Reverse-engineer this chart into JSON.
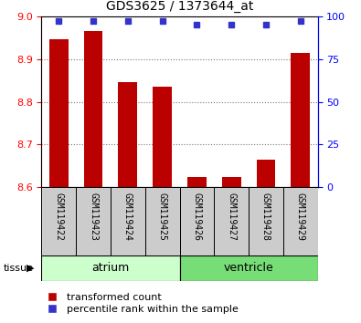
{
  "title": "GDS3625 / 1373644_at",
  "samples": [
    "GSM119422",
    "GSM119423",
    "GSM119424",
    "GSM119425",
    "GSM119426",
    "GSM119427",
    "GSM119428",
    "GSM119429"
  ],
  "bar_values": [
    8.945,
    8.965,
    8.845,
    8.835,
    8.625,
    8.625,
    8.665,
    8.915
  ],
  "dot_values": [
    97,
    97,
    97,
    97,
    95,
    95,
    95,
    97
  ],
  "bar_color": "#bb0000",
  "dot_color": "#3333cc",
  "ylim_left": [
    8.6,
    9.0
  ],
  "ylim_right": [
    0,
    100
  ],
  "yticks_left": [
    8.6,
    8.7,
    8.8,
    8.9,
    9.0
  ],
  "yticks_right": [
    0,
    25,
    50,
    75,
    100
  ],
  "groups": [
    {
      "label": "atrium",
      "samples": [
        0,
        1,
        2,
        3
      ],
      "color": "#ccffcc",
      "dark_color": "#77dd77"
    },
    {
      "label": "ventricle",
      "samples": [
        4,
        5,
        6,
        7
      ],
      "color": "#77dd77",
      "dark_color": "#44bb44"
    }
  ],
  "tissue_label": "tissue",
  "legend_bar_label": "transformed count",
  "legend_dot_label": "percentile rank within the sample",
  "background_color": "#ffffff",
  "grid_color": "#777777",
  "sample_box_color": "#cccccc"
}
